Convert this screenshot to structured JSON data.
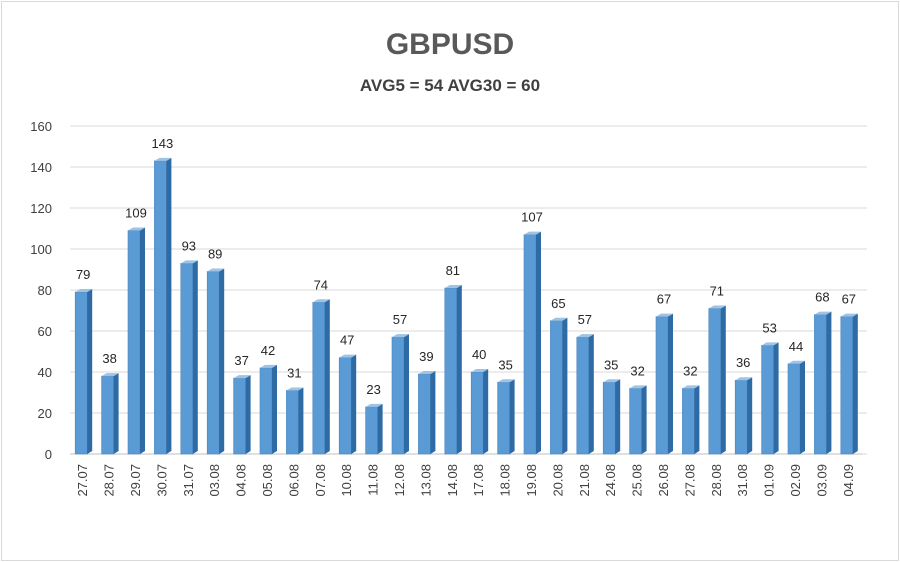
{
  "chart_data": {
    "type": "bar",
    "title": "GBPUSD",
    "subtitle": "AVG5 = 54 AVG30 = 60",
    "categories": [
      "27.07",
      "28.07",
      "29.07",
      "30.07",
      "31.07",
      "03.08",
      "04.08",
      "05.08",
      "06.08",
      "07.08",
      "10.08",
      "11.08",
      "12.08",
      "13.08",
      "14.08",
      "17.08",
      "18.08",
      "19.08",
      "20.08",
      "21.08",
      "24.08",
      "25.08",
      "26.08",
      "27.08",
      "28.08",
      "31.08",
      "01.09",
      "02.09",
      "03.09",
      "04.09"
    ],
    "values": [
      79,
      38,
      109,
      143,
      93,
      89,
      37,
      42,
      31,
      74,
      47,
      23,
      57,
      39,
      81,
      40,
      35,
      107,
      65,
      57,
      35,
      32,
      67,
      32,
      71,
      36,
      53,
      44,
      68,
      67
    ],
    "yticks": [
      0,
      20,
      40,
      60,
      80,
      100,
      120,
      140,
      160
    ],
    "ylim": [
      0,
      160
    ],
    "xlabel": "",
    "ylabel": "",
    "grid": true,
    "legend": "none",
    "colors": {
      "bar_front": "#5b9bd5",
      "bar_side": "#2e6aa3",
      "bar_top": "#9dc3e6",
      "grid": "#d9d9d9"
    }
  }
}
